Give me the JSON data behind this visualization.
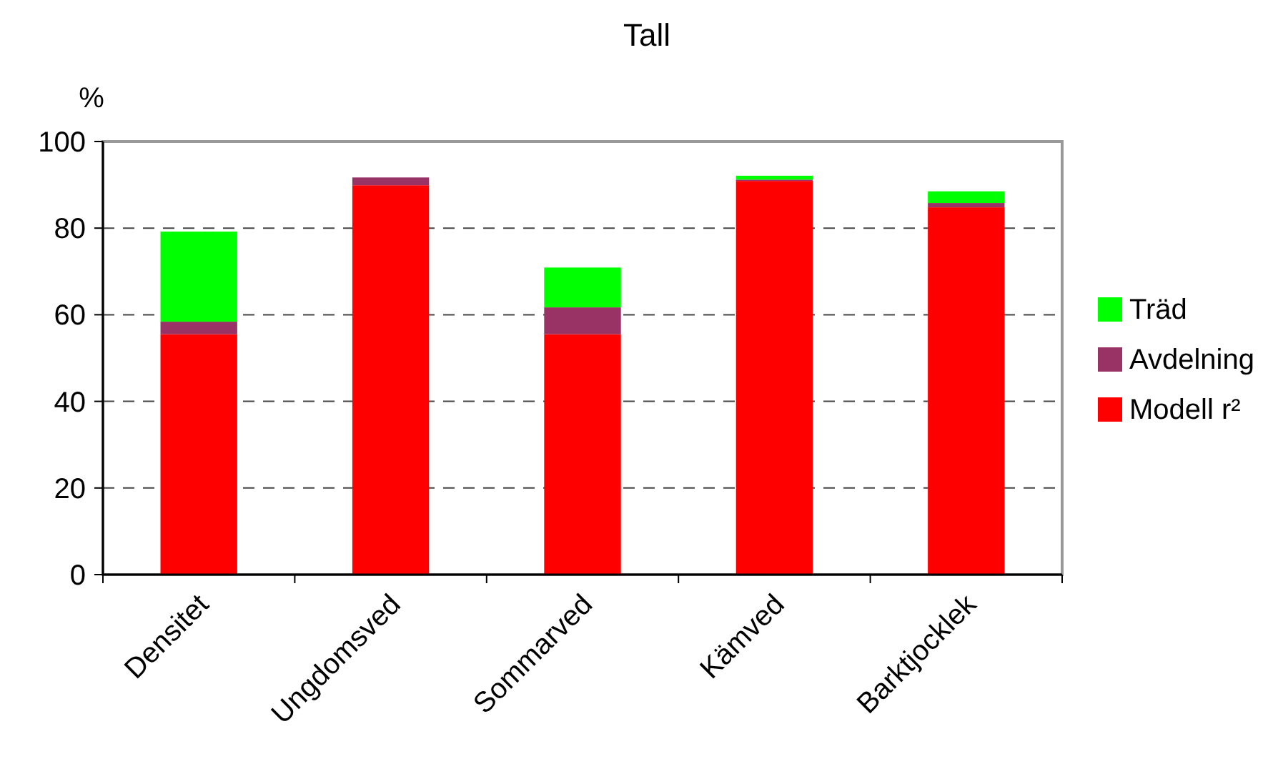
{
  "chart_data": {
    "type": "bar",
    "title": "Tall",
    "ylabel": "%",
    "categories": [
      "Densitet",
      "Ungdomsved",
      "Sommarved",
      "Kämved",
      "Barktjocklek"
    ],
    "stacked": true,
    "ylim": [
      0,
      100
    ],
    "yticks": [
      0,
      20,
      40,
      60,
      80,
      100
    ],
    "grid": "y",
    "legend": "right",
    "series": [
      {
        "name": "Modell r²",
        "color": "#ff0000",
        "values": [
          55.5,
          89.9,
          55.5,
          90.9,
          84.8
        ]
      },
      {
        "name": "Avdelning",
        "color": "#993366",
        "values": [
          2.9,
          1.8,
          6.2,
          0.3,
          1.0
        ]
      },
      {
        "name": "Träd",
        "color": "#00ff00",
        "values": [
          20.8,
          0,
          9.2,
          0.9,
          2.7
        ]
      }
    ]
  }
}
